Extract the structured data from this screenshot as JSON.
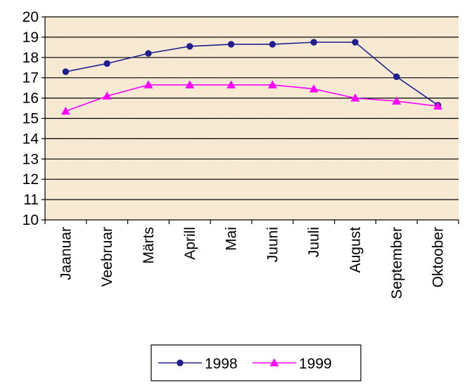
{
  "chart_data": {
    "type": "line",
    "categories": [
      "Jaanuar",
      "Veebruar",
      "Märts",
      "Aprill",
      "Mai",
      "Juuni",
      "Juuli",
      "August",
      "September",
      "Oktoober"
    ],
    "series": [
      {
        "name": "1998",
        "color": "#1f1f8f",
        "marker": "circle",
        "values": [
          17.3,
          17.7,
          18.2,
          18.55,
          18.65,
          18.65,
          18.75,
          18.75,
          17.05,
          15.65
        ]
      },
      {
        "name": "1999",
        "color": "#ff00ff",
        "marker": "triangle",
        "values": [
          15.35,
          16.1,
          16.65,
          16.65,
          16.65,
          16.65,
          16.45,
          16.0,
          15.85,
          15.6
        ]
      }
    ],
    "ylim": [
      10,
      20
    ],
    "yticks": [
      "10",
      "11",
      "12",
      "13",
      "14",
      "15",
      "16",
      "17",
      "18",
      "19",
      "20"
    ],
    "grid": true,
    "legend_position": "bottom",
    "plot_background": "#f7ead2",
    "title": "",
    "xlabel": "",
    "ylabel": ""
  }
}
